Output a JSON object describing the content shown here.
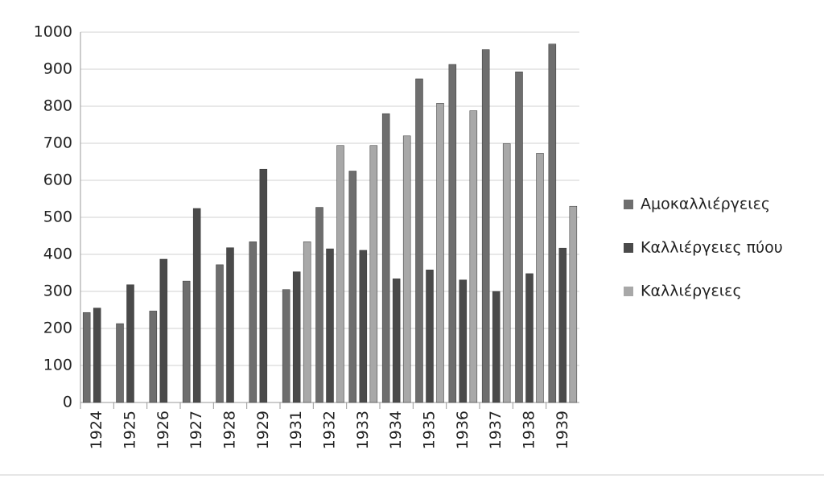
{
  "chart_data": {
    "type": "bar",
    "categories": [
      "1924",
      "1925",
      "1926",
      "1927",
      "1928",
      "1929",
      "1931",
      "1932",
      "1933",
      "1934",
      "1935",
      "1936",
      "1937",
      "1938",
      "1939"
    ],
    "series": [
      {
        "name": "Αμοκαλλιέργειες",
        "color": "#6e6e6e",
        "values": [
          243,
          213,
          247,
          328,
          372,
          434,
          305,
          527,
          625,
          780,
          874,
          913,
          953,
          893,
          968
        ]
      },
      {
        "name": "Καλλιέργειες  πύου",
        "color": "#4a4a4a",
        "values": [
          255,
          318,
          387,
          524,
          418,
          630,
          353,
          415,
          411,
          334,
          358,
          331,
          300,
          348,
          417
        ]
      },
      {
        "name": "Καλλιέργειες",
        "color": "#a8a8a8",
        "values": [
          null,
          null,
          null,
          null,
          null,
          null,
          434,
          694,
          694,
          720,
          808,
          788,
          699,
          673,
          530
        ]
      }
    ],
    "ylim": [
      0,
      1000
    ],
    "yticks": [
      0,
      100,
      200,
      300,
      400,
      500,
      600,
      700,
      800,
      900,
      1000
    ],
    "grid": true,
    "legend": "right"
  }
}
